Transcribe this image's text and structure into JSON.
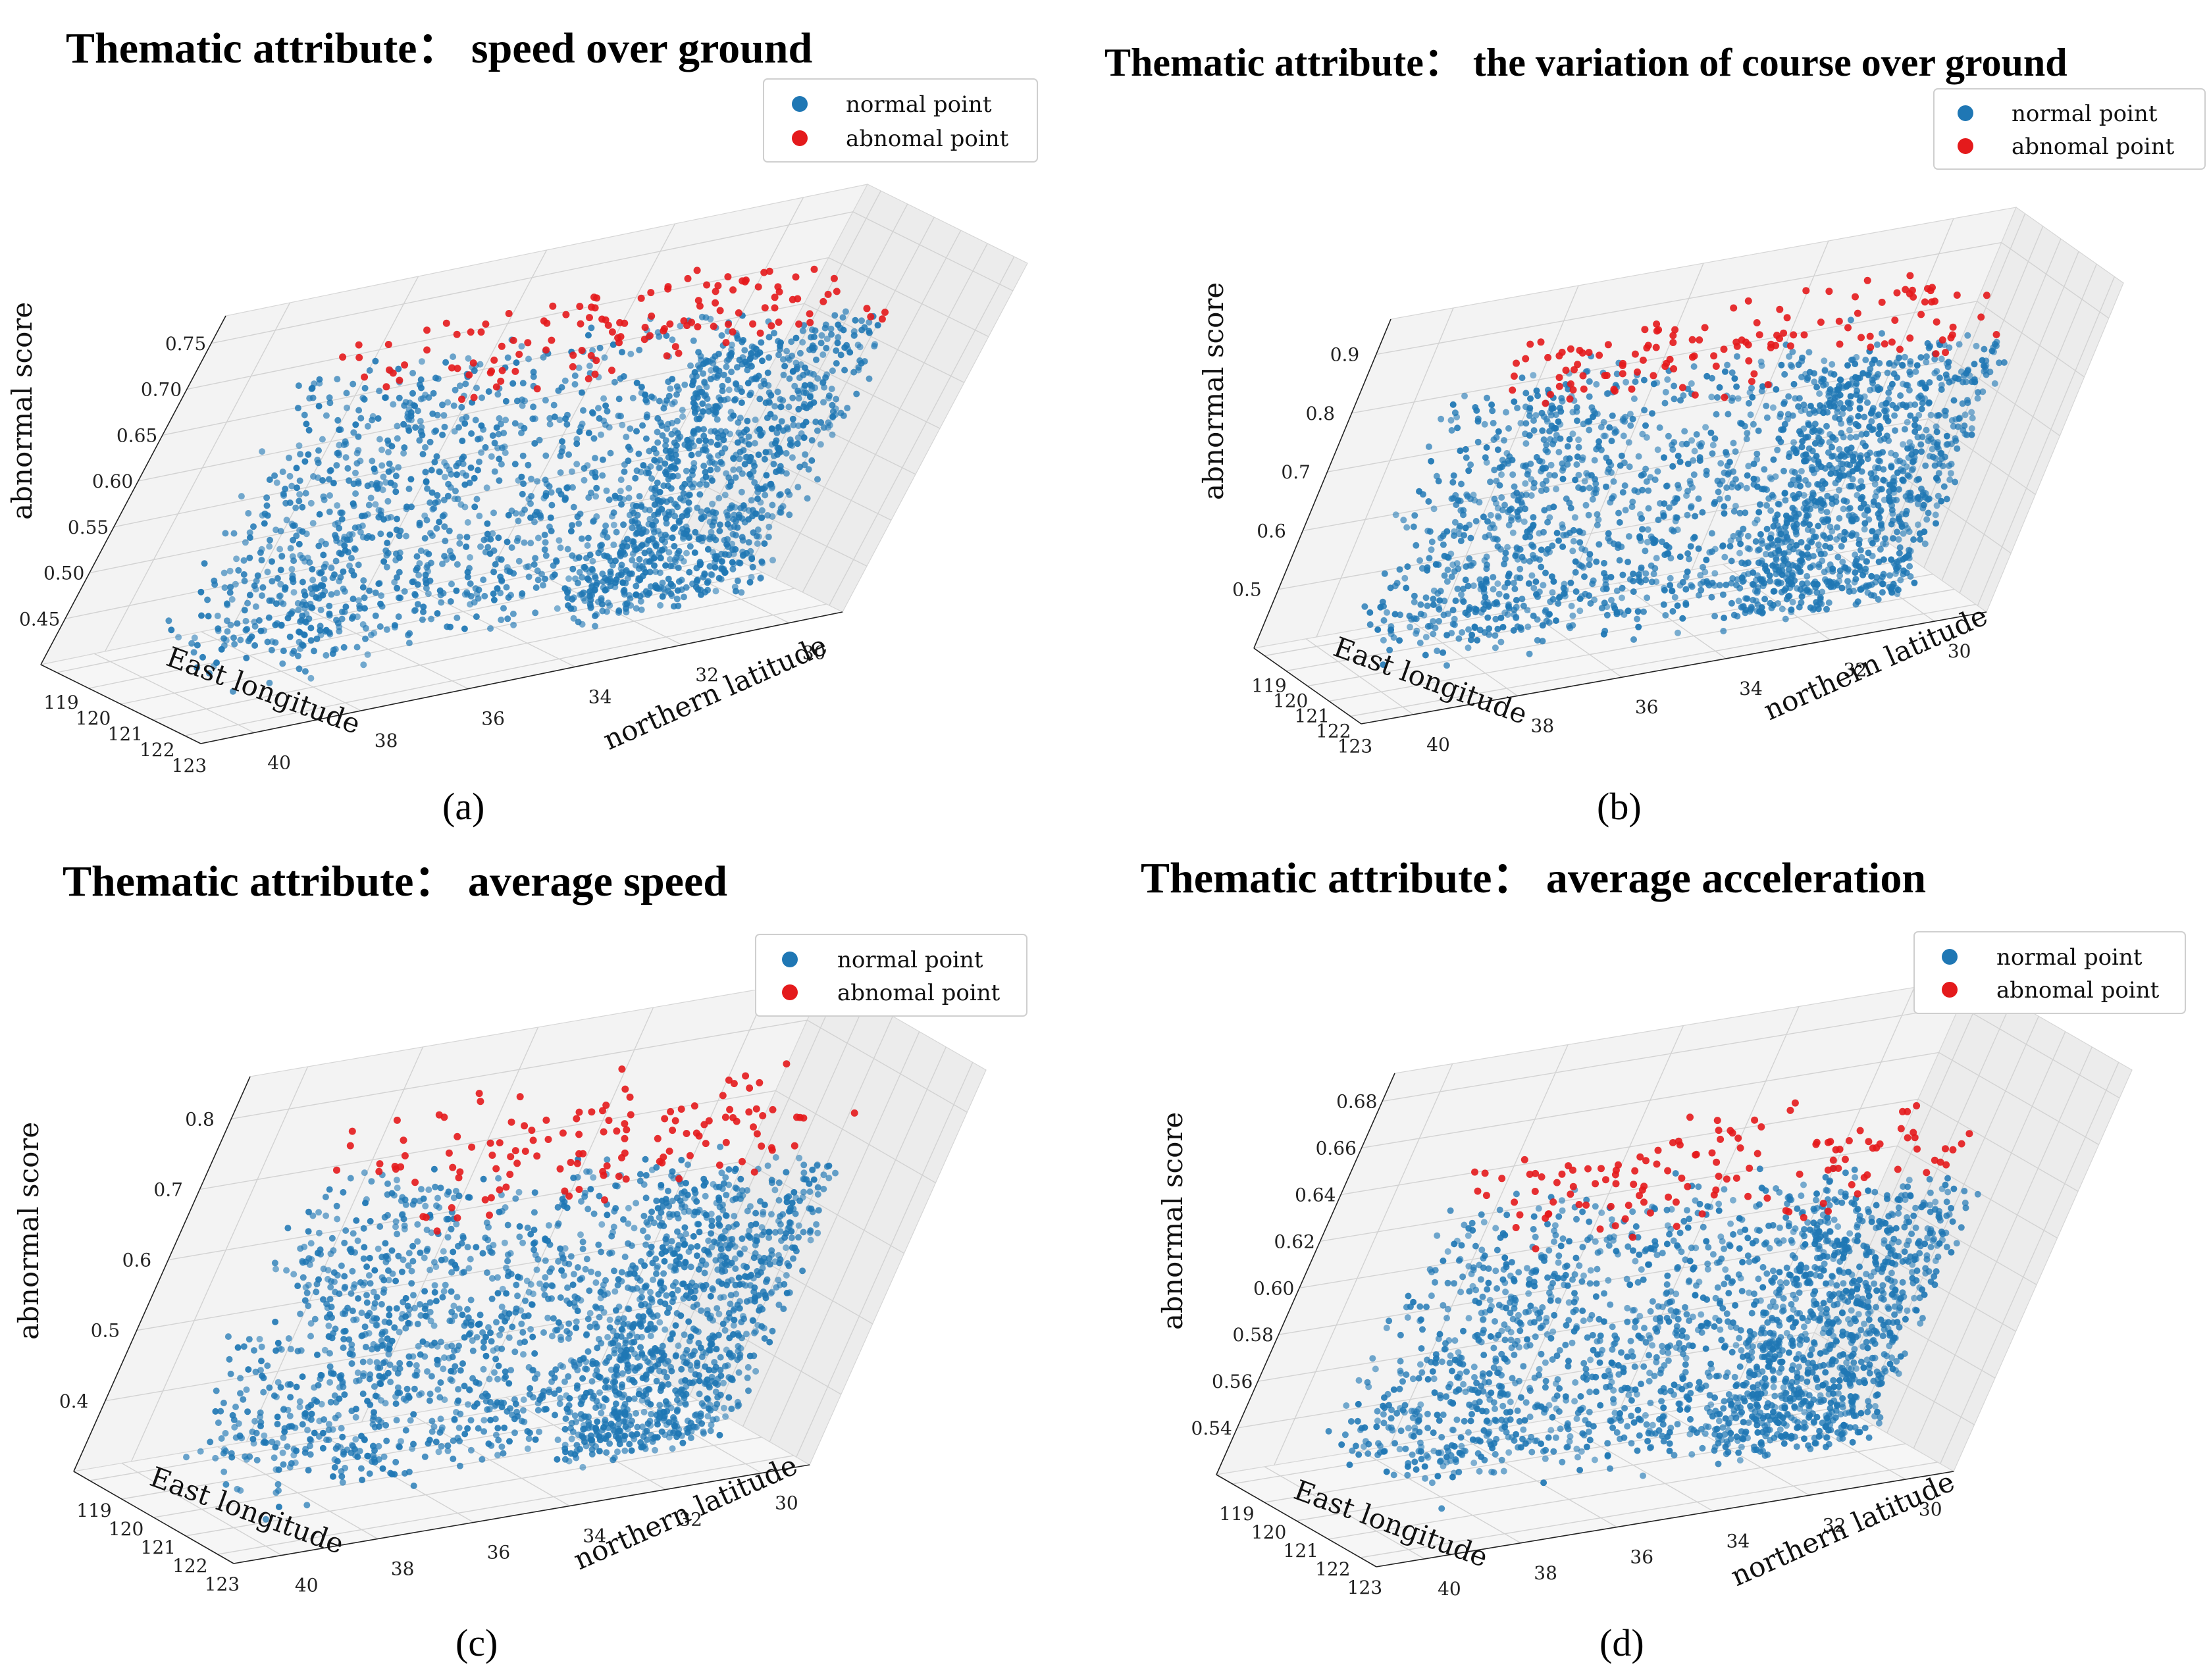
{
  "figure": {
    "colors": {
      "normal": "#1f77b4",
      "abnormal": "#e41a1c"
    }
  },
  "chart_data": [
    {
      "id": "a",
      "type": "scatter",
      "panel_label": "(a)",
      "title": "Thematic attribute： speed over ground",
      "xlabel": "East longitude",
      "ylabel": "northern latitude",
      "zlabel": "abnormal score",
      "x_ticks": [
        "119",
        "120",
        "121",
        "122",
        "123"
      ],
      "y_ticks": [
        "40",
        "38",
        "36",
        "34",
        "32",
        "30"
      ],
      "z_ticks": [
        "0.45",
        "0.50",
        "0.55",
        "0.60",
        "0.65",
        "0.70",
        "0.75"
      ],
      "xlim": [
        118.5,
        123.5
      ],
      "ylim": [
        29,
        41
      ],
      "zlim": [
        0.4,
        0.76
      ],
      "legend": [
        "normal point",
        "abnomal point"
      ],
      "legend_position": "top-right",
      "normal_range": [
        0.42,
        0.72
      ],
      "abnormal_threshold": 0.7
    },
    {
      "id": "b",
      "type": "scatter",
      "panel_label": "(b)",
      "title": "Thematic attribute： the variation of course over ground",
      "xlabel": "East longitude",
      "ylabel": "northern latitude",
      "zlabel": "abnormal score",
      "x_ticks": [
        "119",
        "120",
        "121",
        "122",
        "123"
      ],
      "y_ticks": [
        "40",
        "38",
        "36",
        "34",
        "32",
        "30"
      ],
      "z_ticks": [
        "0.5",
        "0.6",
        "0.7",
        "0.8",
        "0.9"
      ],
      "xlim": [
        118.5,
        123.5
      ],
      "ylim": [
        29,
        41
      ],
      "zlim": [
        0.4,
        0.92
      ],
      "legend": [
        "normal point",
        "abnomal point"
      ],
      "legend_position": "top-right",
      "normal_range": [
        0.42,
        0.88
      ],
      "abnormal_threshold": 0.82
    },
    {
      "id": "c",
      "type": "scatter",
      "panel_label": "(c)",
      "title": "Thematic attribute： average speed",
      "xlabel": "East longitude",
      "ylabel": "northern latitude",
      "zlabel": "abnormal score",
      "x_ticks": [
        "119",
        "120",
        "121",
        "122",
        "123"
      ],
      "y_ticks": [
        "40",
        "38",
        "36",
        "34",
        "32",
        "30"
      ],
      "z_ticks": [
        "0.4",
        "0.5",
        "0.6",
        "0.7",
        "0.8"
      ],
      "xlim": [
        118.5,
        123.5
      ],
      "ylim": [
        29,
        41
      ],
      "zlim": [
        0.35,
        0.85
      ],
      "legend": [
        "normal point",
        "abnomal point"
      ],
      "legend_position": "top-right",
      "normal_range": [
        0.37,
        0.8
      ],
      "abnormal_threshold": 0.72
    },
    {
      "id": "d",
      "type": "scatter",
      "panel_label": "(d)",
      "title": "Thematic attribute： average acceleration",
      "xlabel": "East longitude",
      "ylabel": "northern latitude",
      "zlabel": "abnormal score",
      "x_ticks": [
        "119",
        "120",
        "121",
        "122",
        "123"
      ],
      "y_ticks": [
        "40",
        "38",
        "36",
        "34",
        "32",
        "30"
      ],
      "z_ticks": [
        "0.54",
        "0.56",
        "0.58",
        "0.60",
        "0.62",
        "0.64",
        "0.66",
        "0.68"
      ],
      "xlim": [
        118.5,
        123.5
      ],
      "ylim": [
        29,
        41
      ],
      "zlim": [
        0.53,
        0.69
      ],
      "legend": [
        "normal point",
        "abnomal point"
      ],
      "legend_position": "top-right",
      "normal_range": [
        0.54,
        0.66
      ],
      "abnormal_threshold": 0.64
    }
  ]
}
